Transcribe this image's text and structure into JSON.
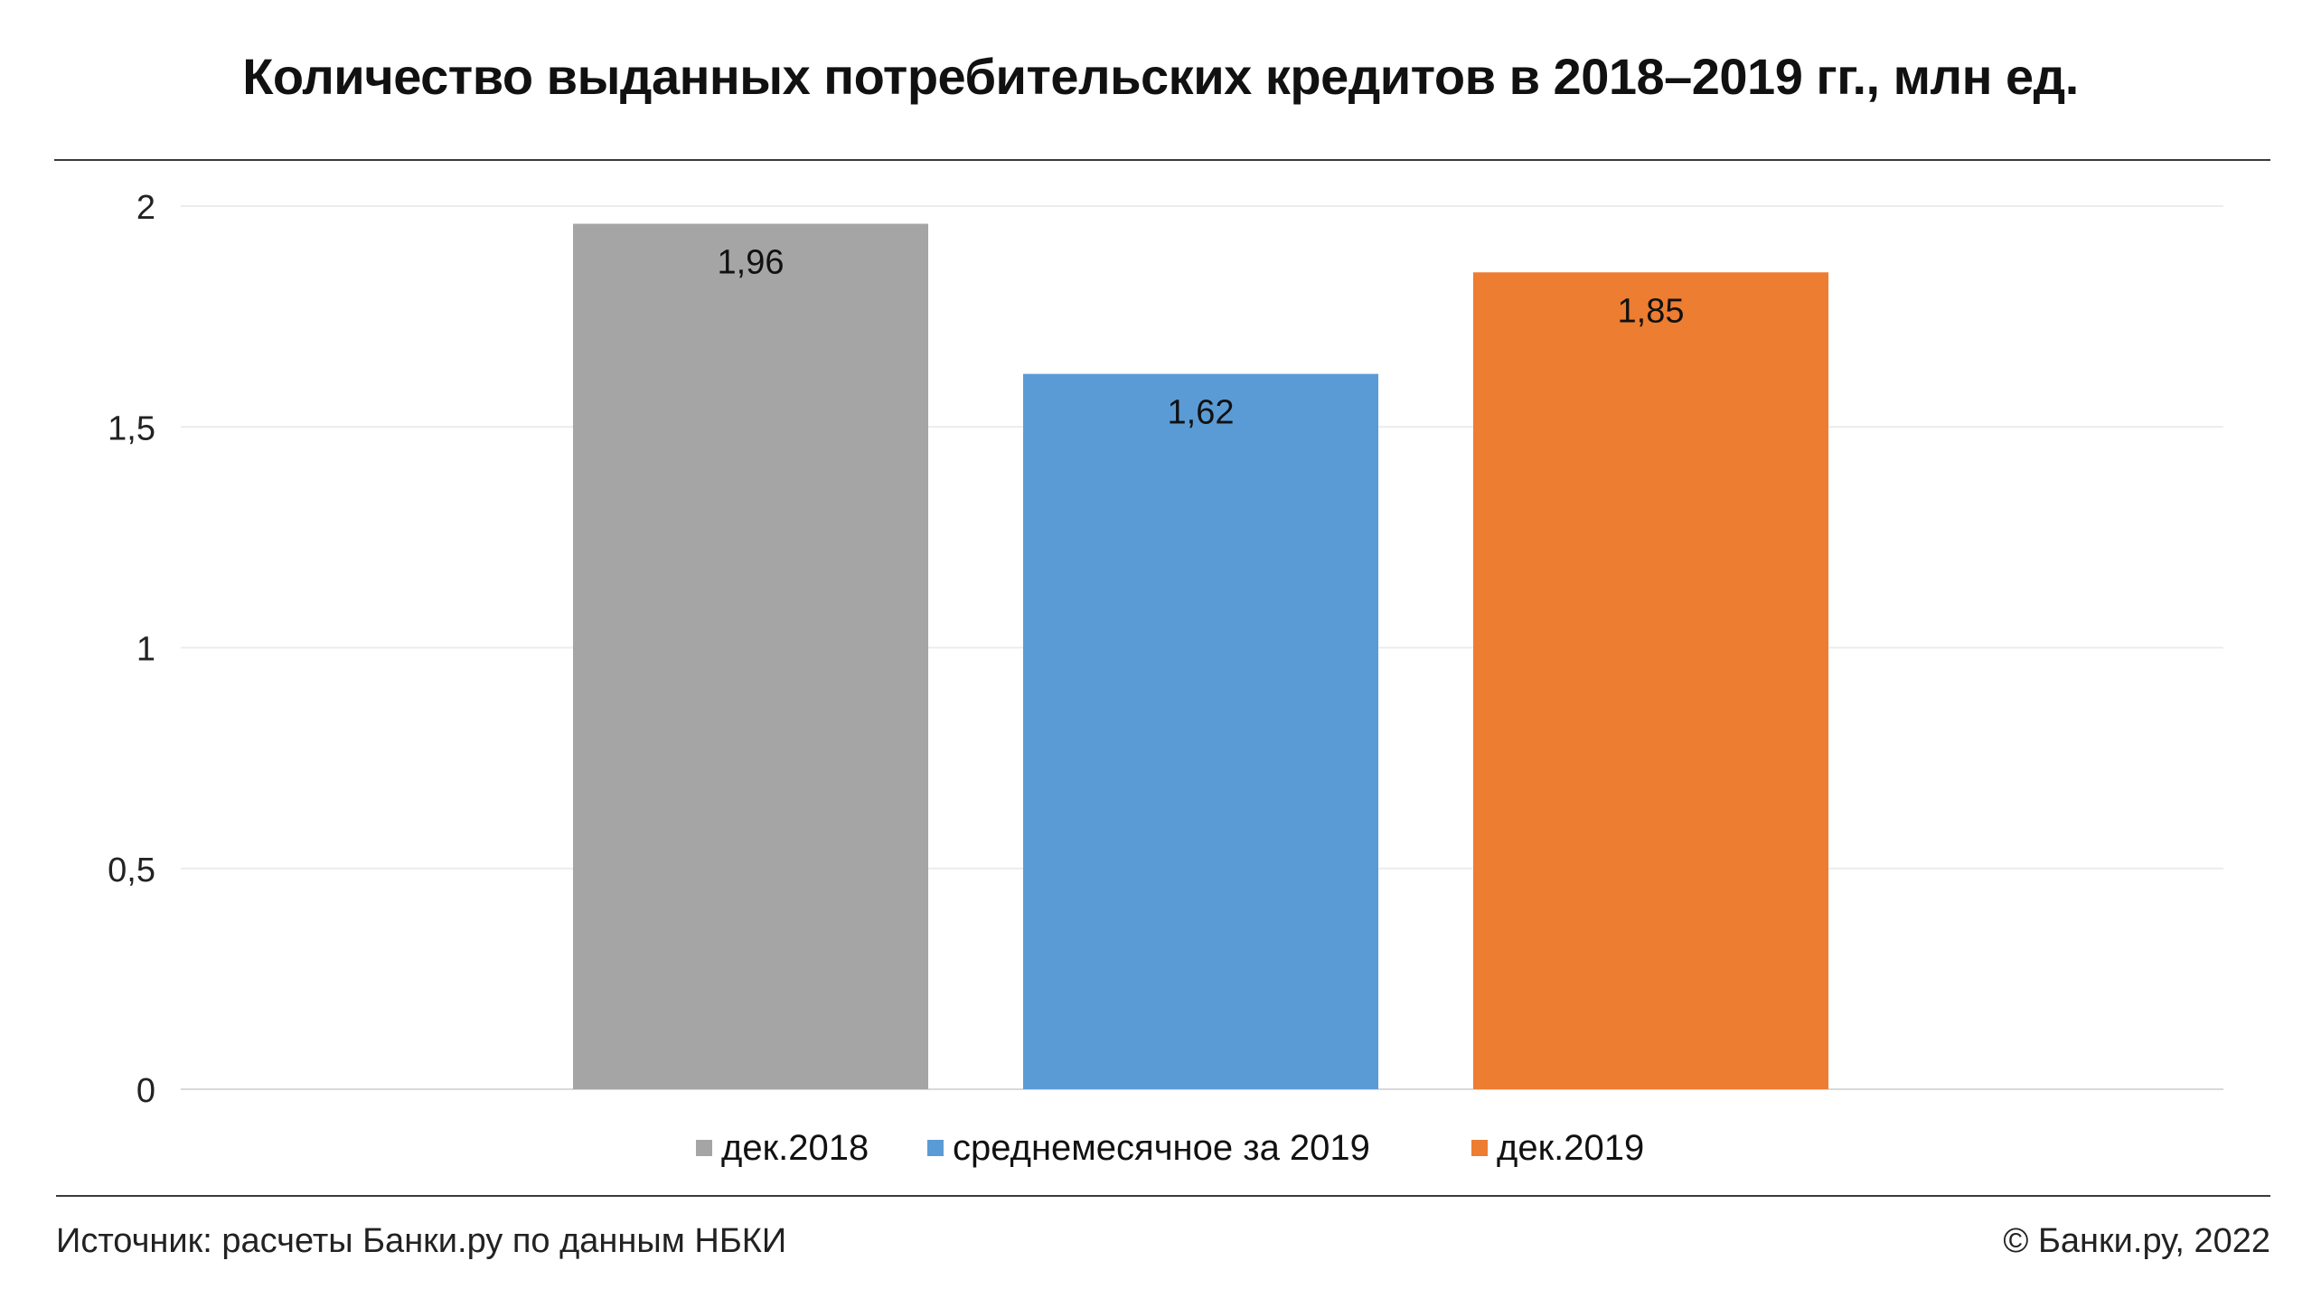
{
  "title": "Количество выданных потребительских кредитов в 2018–2019 гг., млн ед.",
  "footer": {
    "source": "Источник: расчеты Банки.ру по данным НБКИ",
    "copyright": "© Банки.ру, 2022"
  },
  "chart_data": {
    "type": "bar",
    "title": "Количество выданных потребительских кредитов в 2018–2019 гг., млн ед.",
    "xlabel": "",
    "ylabel": "",
    "ylim": [
      0,
      2
    ],
    "yticks": [
      0,
      0.5,
      1,
      1.5,
      2
    ],
    "ytick_labels": [
      "0",
      "0,5",
      "1",
      "1,5",
      "2"
    ],
    "grid": true,
    "legend_position": "bottom",
    "series": [
      {
        "name": "дек.2018",
        "value": 1.96,
        "label": "1,96",
        "color": "#A5A5A5"
      },
      {
        "name": "среднемесячное за 2019",
        "value": 1.62,
        "label": "1,62",
        "color": "#5B9BD5"
      },
      {
        "name": "дек.2019",
        "value": 1.85,
        "label": "1,85",
        "color": "#ED7D31"
      }
    ]
  }
}
